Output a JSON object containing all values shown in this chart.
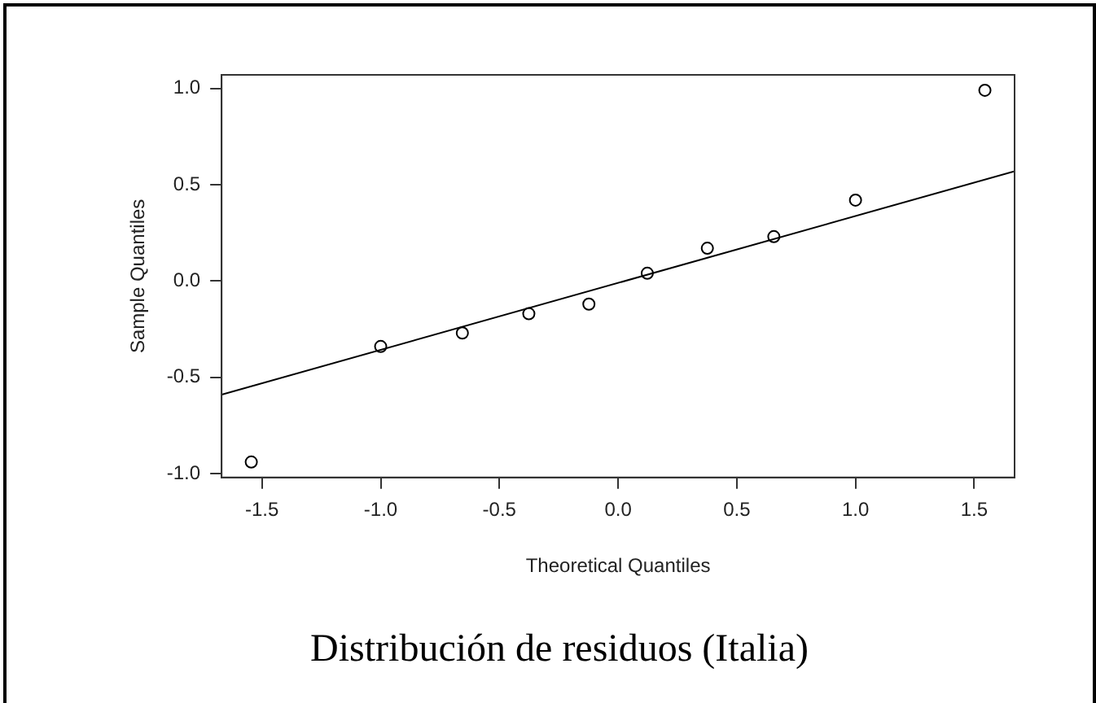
{
  "chart_data": {
    "type": "scatter",
    "title": "Distribución de residuos (Italia)",
    "xlabel": "Theoretical Quantiles",
    "ylabel": "Sample Quantiles",
    "xlim": [
      -1.67,
      1.67
    ],
    "ylim": [
      -1.02,
      1.07
    ],
    "xticks": [
      -1.5,
      {
        "value": -1,
        "label": "-1.0"
      },
      -0.5,
      {
        "value": 0,
        "label": "0.0"
      },
      0.5,
      {
        "value": 1,
        "label": "1.0"
      },
      1.5
    ],
    "yticks": [
      {
        "value": -1,
        "label": "-1.0"
      },
      -0.5,
      {
        "value": 0,
        "label": "0.0"
      },
      0.5,
      {
        "value": 1,
        "label": "1.0"
      }
    ],
    "grid": false,
    "legend": false,
    "marker": "circle",
    "series": [
      {
        "type": "scatter",
        "color": "#000000",
        "x": [
          -1.545,
          -1.0,
          -0.656,
          -0.376,
          -0.123,
          0.123,
          0.376,
          0.656,
          1.0,
          1.545
        ],
        "values": [
          -0.94,
          -0.34,
          -0.27,
          -0.17,
          -0.12,
          0.04,
          0.17,
          0.23,
          0.42,
          0.99
        ]
      },
      {
        "type": "line",
        "color": "#000000",
        "line_style": "solid",
        "marker": "none",
        "x": [
          -1.67,
          1.67
        ],
        "values": [
          -0.59,
          0.57
        ]
      }
    ]
  }
}
